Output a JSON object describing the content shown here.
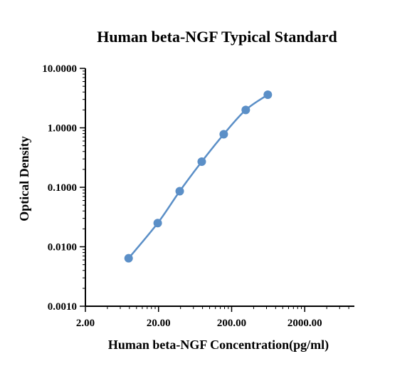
{
  "chart_data": {
    "type": "line",
    "title": "Human beta-NGF Typical Standard",
    "xlabel": "Human beta-NGF Concentration(pg/ml)",
    "ylabel": "Optical Density",
    "x_scale": "log",
    "y_scale": "log",
    "xlim": [
      2,
      10000
    ],
    "ylim": [
      0.001,
      10
    ],
    "x_ticks": [
      {
        "value": 2,
        "label": "2.00"
      },
      {
        "value": 20,
        "label": "20.00"
      },
      {
        "value": 200,
        "label": "200.00"
      },
      {
        "value": 2000,
        "label": "2000.00"
      }
    ],
    "y_ticks": [
      {
        "value": 0.001,
        "label": "0.0010"
      },
      {
        "value": 0.01,
        "label": "0.0100"
      },
      {
        "value": 0.1,
        "label": "0.1000"
      },
      {
        "value": 1,
        "label": "1.0000"
      },
      {
        "value": 10,
        "label": "10.0000"
      }
    ],
    "grid": false,
    "series": [
      {
        "x": [
          7.8,
          19.5,
          39,
          78,
          156,
          312,
          625
        ],
        "y": [
          0.0064,
          0.025,
          0.086,
          0.27,
          0.78,
          2.0,
          3.6
        ],
        "color": "#5b8fc7"
      }
    ]
  }
}
